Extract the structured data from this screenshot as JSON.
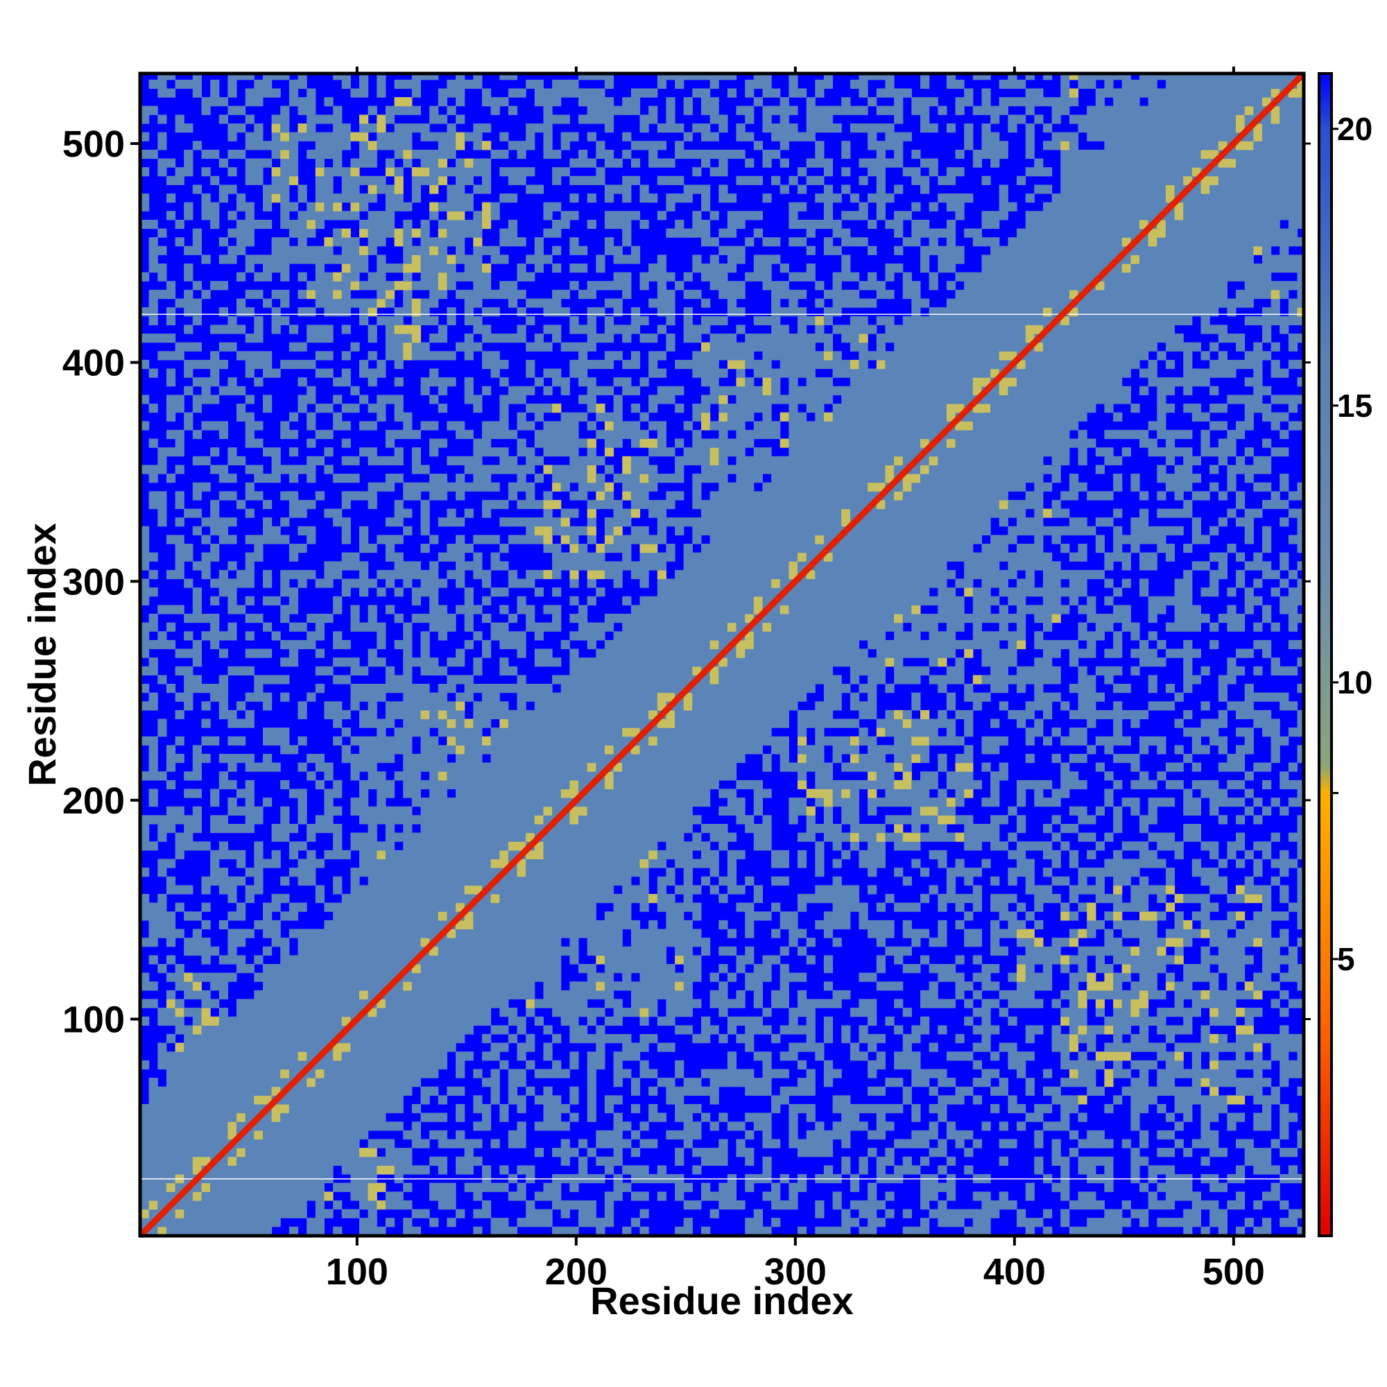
{
  "chart_data": {
    "type": "heatmap",
    "title": "",
    "xlabel": "Residue index",
    "ylabel": "Residue index",
    "xlim": [
      1,
      532
    ],
    "ylim": [
      1,
      532
    ],
    "x_ticks": [
      100,
      200,
      300,
      400,
      500
    ],
    "y_ticks": [
      100,
      200,
      300,
      400,
      500
    ],
    "top_ticks": [
      100,
      200,
      300,
      400,
      500
    ],
    "colorbar": {
      "range": [
        0,
        21
      ],
      "ticks": [
        5,
        10,
        15,
        20
      ],
      "minor_ticks": [
        8
      ],
      "colors": [
        {
          "value": 0,
          "color": "#e00000"
        },
        {
          "value": 4,
          "color": "#ff6a00"
        },
        {
          "value": 8,
          "color": "#ffb000"
        },
        {
          "value": 8.5,
          "color": "#8aa57a"
        },
        {
          "value": 12,
          "color": "#6b8cb0"
        },
        {
          "value": 16,
          "color": "#5a7fb5"
        },
        {
          "value": 20,
          "color": "#2a50d0"
        },
        {
          "value": 21,
          "color": "#0000ff"
        }
      ]
    },
    "background_color": "#0000ff",
    "mid_color": "#5b84b8",
    "contact_color": "#c8c060",
    "diagonal_color": "#e02000",
    "white_lines_at_y": [
      27,
      422
    ],
    "diagonal": {
      "from": 1,
      "to": 532
    },
    "domains": [
      {
        "x": [
          10,
          100
        ],
        "y": [
          10,
          100
        ]
      },
      {
        "x": [
          100,
          250
        ],
        "y": [
          100,
          250
        ]
      },
      {
        "x": [
          250,
          420
        ],
        "y": [
          250,
          420
        ]
      },
      {
        "x": [
          420,
          532
        ],
        "y": [
          420,
          532
        ]
      }
    ],
    "contact_bands": [
      {
        "x": [
          110,
          140
        ],
        "y": [
          400,
          520
        ]
      },
      {
        "x": [
          400,
          520
        ],
        "y": [
          110,
          140
        ]
      },
      {
        "x": [
          180,
          240
        ],
        "y": [
          300,
          380
        ]
      },
      {
        "x": [
          300,
          380
        ],
        "y": [
          180,
          240
        ]
      },
      {
        "x": [
          420,
          510
        ],
        "y": [
          60,
          160
        ]
      },
      {
        "x": [
          60,
          160
        ],
        "y": [
          420,
          510
        ]
      },
      {
        "x": [
          10,
          40
        ],
        "y": [
          90,
          120
        ]
      },
      {
        "x": [
          90,
          120
        ],
        "y": [
          10,
          40
        ]
      }
    ]
  }
}
